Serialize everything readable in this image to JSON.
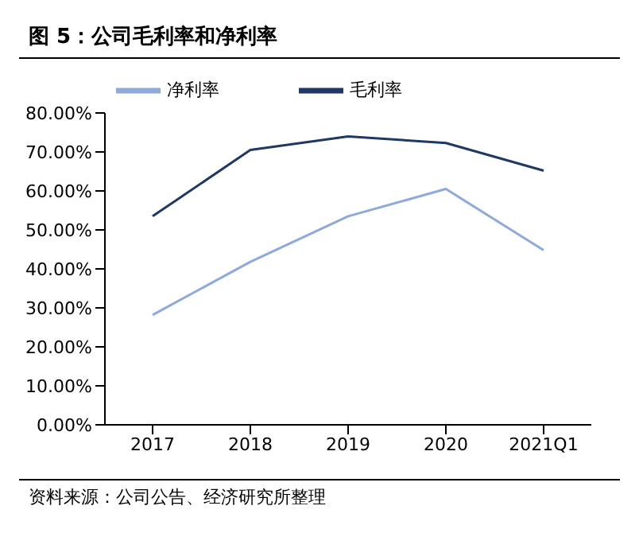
{
  "chart_data": {
    "type": "line",
    "title": "图 5：公司毛利率和净利率",
    "categories": [
      "2017",
      "2018",
      "2019",
      "2020",
      "2021Q1"
    ],
    "series": [
      {
        "name": "毛利率",
        "color": "#1f3864",
        "values": [
          53.5,
          70.5,
          74.0,
          72.3,
          65.2
        ]
      },
      {
        "name": "净利率",
        "color": "#8eaadb",
        "values": [
          28.2,
          41.8,
          53.5,
          60.5,
          44.8
        ]
      }
    ],
    "ylim": [
      0,
      80
    ],
    "yticks": [
      {
        "value": 0,
        "label": "0.00%"
      },
      {
        "value": 10,
        "label": "10.00%"
      },
      {
        "value": 20,
        "label": "20.00%"
      },
      {
        "value": 30,
        "label": "30.00%"
      },
      {
        "value": 40,
        "label": "40.00%"
      },
      {
        "value": 50,
        "label": "50.00%"
      },
      {
        "value": 60,
        "label": "60.00%"
      },
      {
        "value": 70,
        "label": "70.00%"
      },
      {
        "value": 80,
        "label": "80.00%"
      }
    ],
    "grid": false,
    "legend": "top",
    "marker": "none",
    "line_style": "solid",
    "annotations": [
      "资料来源：公司公告、经济研究所整理"
    ]
  }
}
